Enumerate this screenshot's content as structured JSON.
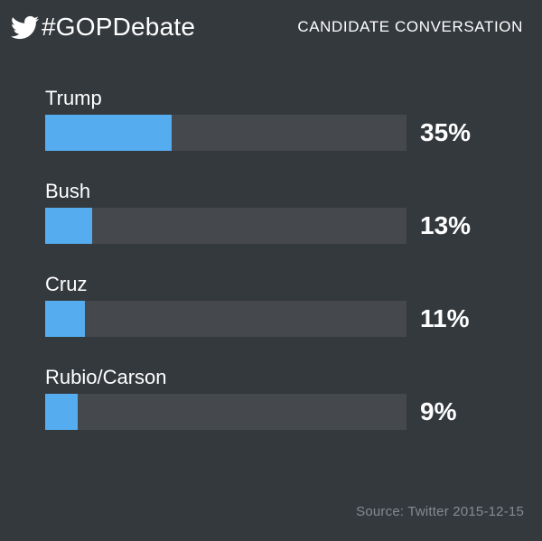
{
  "header": {
    "hashtag": "#GOPDebate",
    "subtitle": "CANDIDATE CONVERSATION",
    "icon": "twitter-bird-icon"
  },
  "chart_data": {
    "type": "bar",
    "orientation": "horizontal",
    "title": "CANDIDATE CONVERSATION",
    "categories": [
      "Trump",
      "Bush",
      "Cruz",
      "Rubio/Carson"
    ],
    "values": [
      35,
      13,
      11,
      9
    ],
    "unit": "%",
    "xlim": [
      0,
      100
    ],
    "grid": false,
    "legend": false,
    "bar_color": "#55acee",
    "track_color": "#45494e"
  },
  "rows": [
    {
      "label": "Trump",
      "value": 35,
      "value_label": "35%"
    },
    {
      "label": "Bush",
      "value": 13,
      "value_label": "13%"
    },
    {
      "label": "Cruz",
      "value": 11,
      "value_label": "11%"
    },
    {
      "label": "Rubio/Carson",
      "value": 9,
      "value_label": "9%"
    }
  ],
  "footer": {
    "source": "Source: Twitter 2015-12-15"
  },
  "colors": {
    "background": "#34393e",
    "bar_fill": "#55acee",
    "bar_track": "#45494e",
    "text": "#ffffff",
    "source_text": "#848b91"
  }
}
